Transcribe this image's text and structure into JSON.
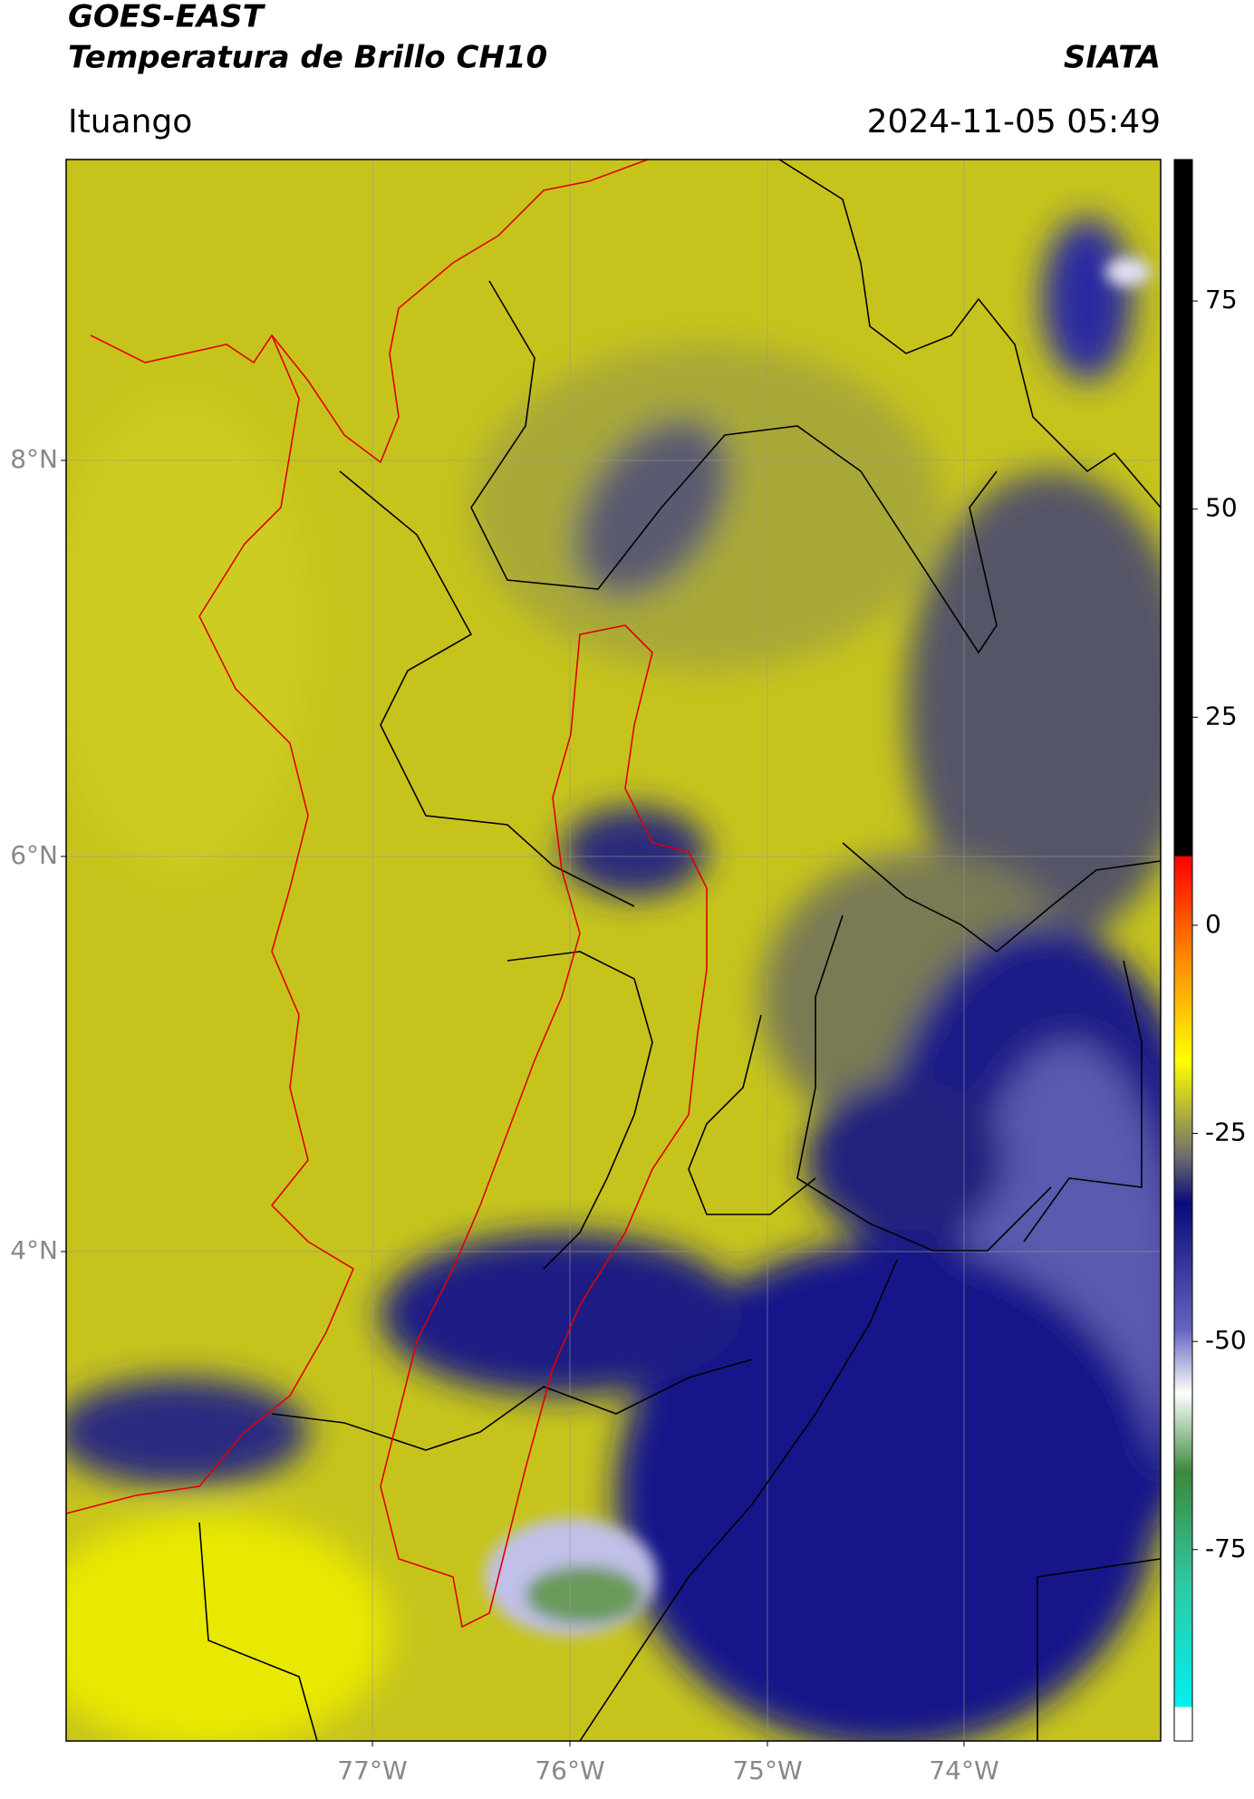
{
  "header": {
    "title": "GOES-EAST",
    "subtitle": "Temperatura de Brillo CH10",
    "brand": "SIATA",
    "region": "Ituango",
    "datetime": "2024-11-05 05:49"
  },
  "map": {
    "lat_labels": [
      "8°N",
      "6°N",
      "4°N"
    ],
    "lon_labels": [
      "77°W",
      "76°W",
      "75°W",
      "74°W"
    ]
  },
  "colorbar": {
    "lim": [
      -98,
      92
    ],
    "ticks": [
      75,
      50,
      25,
      0,
      -25,
      -50,
      -75
    ]
  }
}
